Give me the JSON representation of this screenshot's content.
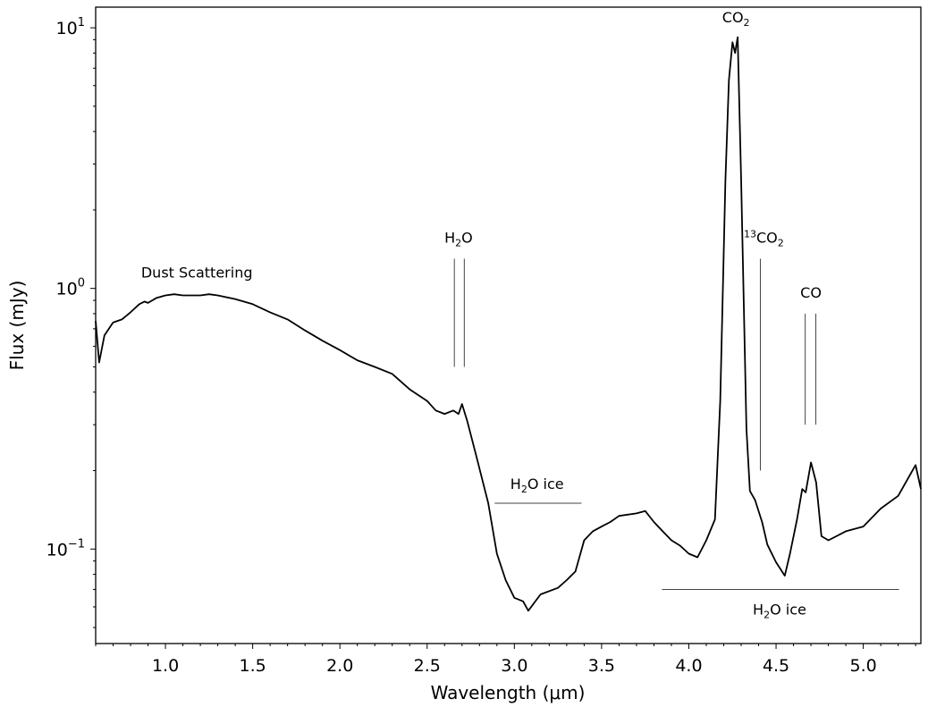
{
  "chart_data": {
    "type": "line",
    "xlabel": "Wavelength (μm)",
    "ylabel": "Flux (mJy)",
    "xlim": [
      0.6,
      5.33
    ],
    "ylim": [
      0.0434,
      12
    ],
    "yscale": "log",
    "grid": false,
    "x_ticks": [
      "1.0",
      "1.5",
      "2.0",
      "2.5",
      "3.0",
      "3.5",
      "4.0",
      "4.5",
      "5.0"
    ],
    "y_ticks": [
      {
        "value": 0.1,
        "base": "10",
        "exp": "−1"
      },
      {
        "value": 1,
        "base": "10",
        "exp": "0"
      },
      {
        "value": 10,
        "base": "10",
        "exp": "1"
      }
    ],
    "series": [
      {
        "color": "#000000",
        "x": [
          0.6,
          0.62,
          0.65,
          0.7,
          0.75,
          0.8,
          0.85,
          0.88,
          0.9,
          0.95,
          1.0,
          1.05,
          1.1,
          1.15,
          1.2,
          1.25,
          1.3,
          1.4,
          1.5,
          1.6,
          1.7,
          1.8,
          1.9,
          2.0,
          2.1,
          2.2,
          2.3,
          2.4,
          2.5,
          2.55,
          2.6,
          2.65,
          2.68,
          2.7,
          2.73,
          2.78,
          2.85,
          2.9,
          2.95,
          3.0,
          3.05,
          3.08,
          3.15,
          3.25,
          3.3,
          3.35,
          3.4,
          3.45,
          3.5,
          3.55,
          3.6,
          3.7,
          3.75,
          3.8,
          3.85,
          3.9,
          3.95,
          4.0,
          4.05,
          4.1,
          4.15,
          4.18,
          4.21,
          4.23,
          4.25,
          4.265,
          4.28,
          4.3,
          4.33,
          4.35,
          4.38,
          4.42,
          4.45,
          4.5,
          4.55,
          4.58,
          4.62,
          4.65,
          4.67,
          4.7,
          4.73,
          4.76,
          4.8,
          4.9,
          5.0,
          5.1,
          5.2,
          5.3,
          5.33
        ],
        "y": [
          0.75,
          0.52,
          0.66,
          0.74,
          0.76,
          0.81,
          0.87,
          0.89,
          0.88,
          0.92,
          0.94,
          0.95,
          0.94,
          0.94,
          0.94,
          0.95,
          0.94,
          0.91,
          0.87,
          0.81,
          0.76,
          0.69,
          0.63,
          0.58,
          0.53,
          0.5,
          0.47,
          0.41,
          0.37,
          0.34,
          0.33,
          0.34,
          0.33,
          0.36,
          0.31,
          0.23,
          0.15,
          0.096,
          0.076,
          0.065,
          0.063,
          0.058,
          0.067,
          0.071,
          0.076,
          0.082,
          0.108,
          0.117,
          0.122,
          0.127,
          0.134,
          0.137,
          0.14,
          0.127,
          0.117,
          0.108,
          0.103,
          0.096,
          0.093,
          0.108,
          0.13,
          0.37,
          2.6,
          6.3,
          8.8,
          8.0,
          9.2,
          2.6,
          0.29,
          0.167,
          0.154,
          0.127,
          0.104,
          0.089,
          0.079,
          0.096,
          0.13,
          0.17,
          0.165,
          0.215,
          0.18,
          0.112,
          0.108,
          0.117,
          0.122,
          0.143,
          0.16,
          0.21,
          0.17
        ]
      }
    ],
    "annotations": [
      {
        "text": "Dust Scattering",
        "x": 1.18,
        "y": 1.1
      },
      {
        "text": "H",
        "sub": "2",
        "tail": "O",
        "x": 2.68,
        "y": 1.5,
        "lines": [
          {
            "x": 2.656,
            "y0": 0.5,
            "y1": 1.3
          },
          {
            "x": 2.713,
            "y0": 0.5,
            "y1": 1.3
          }
        ]
      },
      {
        "text": "CO",
        "sub": "2",
        "tail": "",
        "x": 4.27,
        "y": 10.5
      },
      {
        "sup": "13",
        "text": "CO",
        "sub": "2",
        "x": 4.43,
        "y": 1.5,
        "lines": [
          {
            "x": 4.41,
            "y0": 0.2,
            "y1": 1.3
          }
        ]
      },
      {
        "text": "CO",
        "x": 4.7,
        "y": 0.92,
        "lines": [
          {
            "x": 4.667,
            "y0": 0.3,
            "y1": 0.8
          },
          {
            "x": 4.728,
            "y0": 0.3,
            "y1": 0.8
          }
        ]
      },
      {
        "text": "H",
        "sub": "2",
        "tail": "O ice",
        "x": 3.13,
        "y": 0.17,
        "hline": {
          "x0": 2.887,
          "x1": 3.385,
          "y": 0.15
        }
      },
      {
        "text": "H",
        "sub": "2",
        "tail": "O ice",
        "x": 4.52,
        "y": 0.056,
        "hline": {
          "x0": 3.846,
          "x1": 5.205,
          "y": 0.07
        }
      }
    ]
  }
}
